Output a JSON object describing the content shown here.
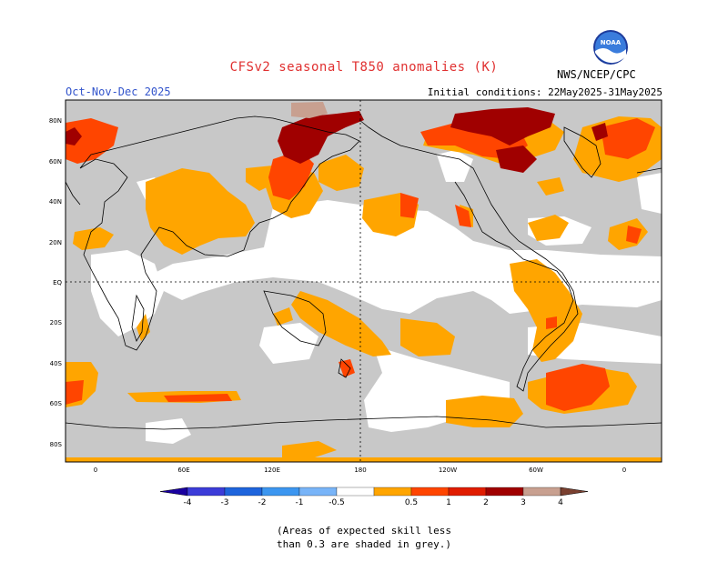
{
  "header": {
    "title": "CFSv2 seasonal T850 anomalies (K)",
    "season": "Oct-Nov-Dec 2025",
    "initial_conditions": "Initial conditions: 22May2025-31May2025",
    "agency": "NWS/NCEP/CPC",
    "logo_text": "NOAA"
  },
  "map": {
    "lat_labels": [
      "80N",
      "60N",
      "40N",
      "20N",
      "EQ",
      "20S",
      "40S",
      "60S",
      "80S"
    ],
    "lon_labels": [
      "0",
      "60E",
      "120E",
      "180",
      "120W",
      "60W",
      "0"
    ],
    "colors": {
      "grey": "#c8c8c8",
      "white": "#ffffff",
      "a05": "#ffa500",
      "a1": "#ff4500",
      "a2": "#c00000",
      "a3": "#8b0000",
      "a4": "#c8a090"
    }
  },
  "colorbar": {
    "labels": [
      "-4",
      "-3",
      "-2",
      "-1",
      "-0.5",
      "0.5",
      "1",
      "2",
      "3",
      "4"
    ],
    "colors": [
      "#1a00a0",
      "#3c3cd8",
      "#1e64dc",
      "#3c96f0",
      "#78b4f8",
      "#ffffff",
      "#ffa500",
      "#ff4500",
      "#e01c00",
      "#a00000",
      "#c8a090",
      "#7a4030"
    ]
  },
  "footnote": {
    "line1": "(Areas of expected skill less",
    "line2": "than 0.3 are shaded in grey.)"
  }
}
